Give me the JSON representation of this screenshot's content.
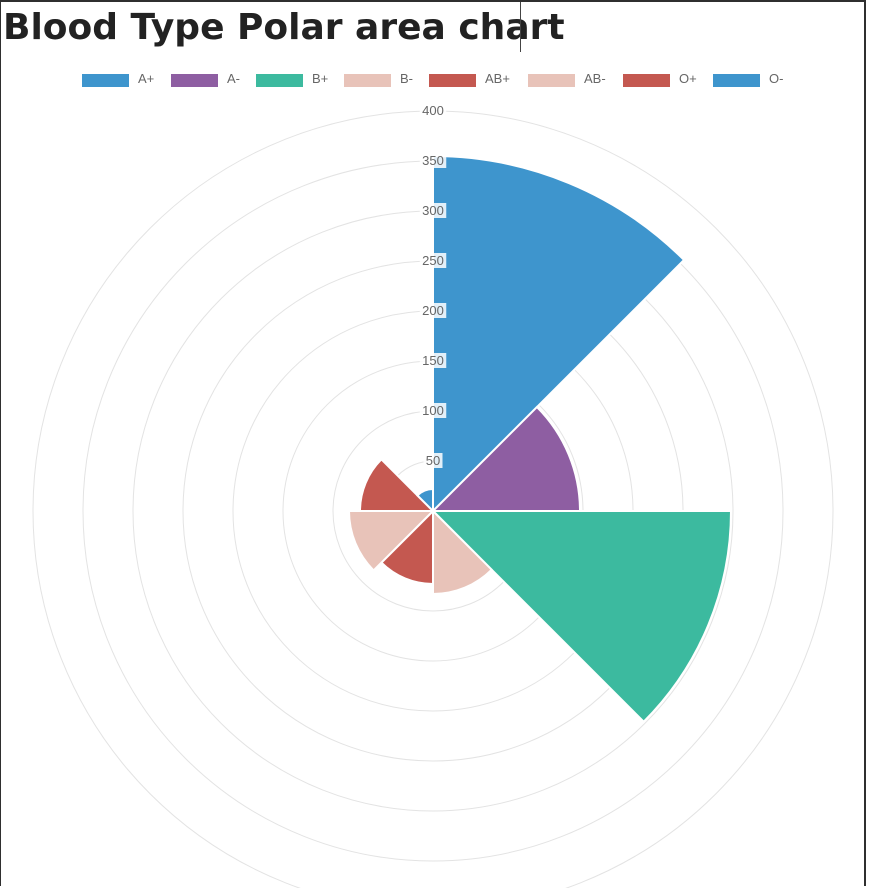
{
  "page": {
    "title": "Blood Type Polar area chart"
  },
  "chart_data": {
    "type": "polarArea",
    "title": "Blood Type Polar area chart",
    "categories": [
      "A+",
      "A-",
      "B+",
      "B-",
      "AB+",
      "AB-",
      "O+",
      "O-"
    ],
    "values": [
      355,
      147,
      298,
      83,
      73,
      84,
      73,
      22
    ],
    "colors": [
      "#3e95cd",
      "#8e5ea2",
      "#3cba9f",
      "#e8c3b9",
      "#c45850",
      "#e8c3b9",
      "#c45850",
      "#3e95cd"
    ],
    "r_ticks": [
      "50",
      "100",
      "150",
      "200",
      "250",
      "300",
      "350",
      "400"
    ],
    "r_range": [
      0,
      400
    ],
    "grid": true,
    "legend_position": "top"
  }
}
